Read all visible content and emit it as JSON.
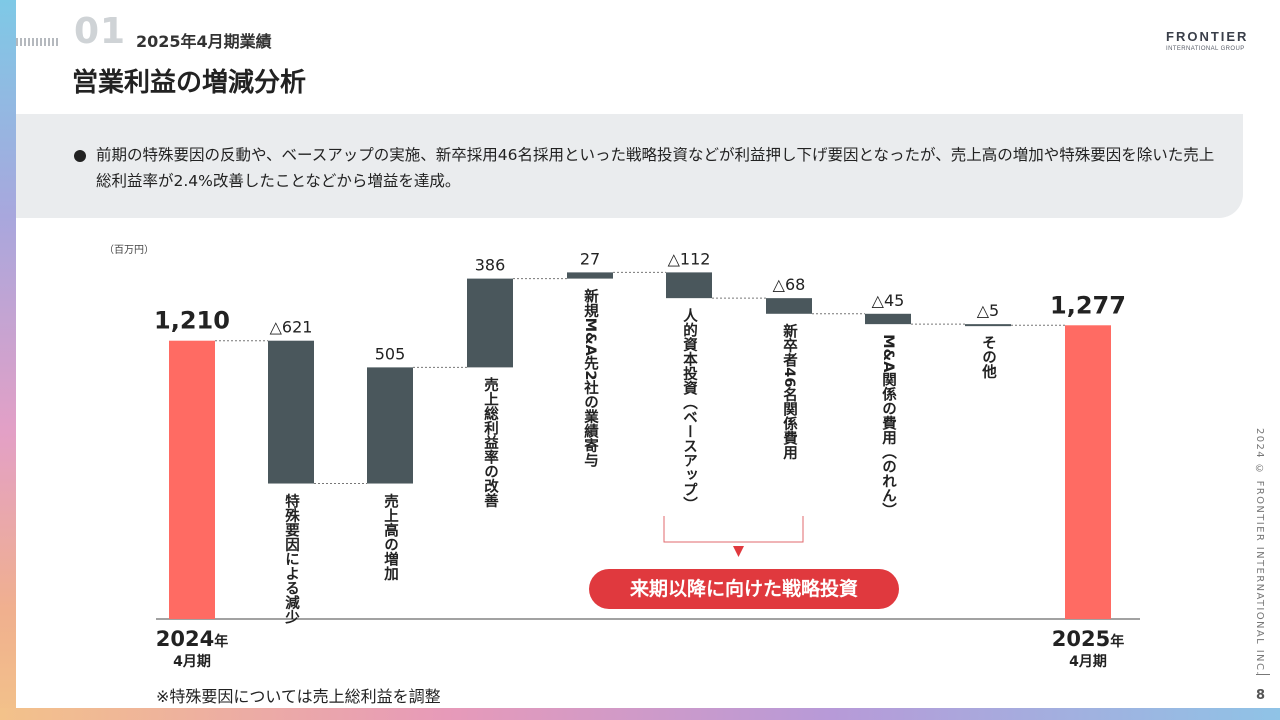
{
  "header": {
    "section_number": "01",
    "section_subtitle": "2025年4月期業績",
    "title": "営業利益の増減分析",
    "logo_main": "FRONTIER",
    "logo_sub": "INTERNATIONAL GROUP"
  },
  "summary": {
    "text": "前期の特殊要因の反動や、ベースアップの実施、新卒採用46名採用といった戦略投資などが利益押し下げ要因となったが、売上高の増加や特殊要因を除いた売上総利益率が2.4%改善したことなどから増益を達成。"
  },
  "chart_data": {
    "type": "waterfall",
    "unit_label": "（百万円）",
    "ylim": [
      0,
      1700
    ],
    "bars": [
      {
        "label": "",
        "value": 1210,
        "value_label": "1,210",
        "kind": "total",
        "start": 0,
        "end": 1210,
        "color": "#ff6b63"
      },
      {
        "label": "特殊要因による減少",
        "value": -621,
        "value_label": "△621",
        "kind": "delta",
        "start": 1210,
        "end": 589
      },
      {
        "label": "売上高の増加",
        "value": 505,
        "value_label": "505",
        "kind": "delta",
        "start": 589,
        "end": 1094
      },
      {
        "label": "売上総利益率の改善",
        "value": 386,
        "value_label": "386",
        "kind": "delta",
        "start": 1094,
        "end": 1480
      },
      {
        "label": "新規M&A先2社の業績寄与",
        "value": 27,
        "value_label": "27",
        "kind": "delta",
        "start": 1480,
        "end": 1507
      },
      {
        "label": "人的資本投資（ベースアップ）",
        "value": -112,
        "value_label": "△112",
        "kind": "delta",
        "start": 1507,
        "end": 1395
      },
      {
        "label": "新卒者46名関係費用",
        "value": -68,
        "value_label": "△68",
        "kind": "delta",
        "start": 1395,
        "end": 1327
      },
      {
        "label": "M&A関係の費用（のれん）",
        "value": -45,
        "value_label": "△45",
        "kind": "delta",
        "start": 1327,
        "end": 1282
      },
      {
        "label": "その他",
        "value": -5,
        "value_label": "△5",
        "kind": "delta",
        "start": 1282,
        "end": 1277
      },
      {
        "label": "",
        "value": 1277,
        "value_label": "1,277",
        "kind": "total",
        "start": 0,
        "end": 1277,
        "color": "#ff6b63"
      }
    ],
    "delta_color": "#4a575c",
    "x_labels": [
      {
        "main": "2024",
        "suffix": "年",
        "sub": "4月期"
      },
      {
        "main": "2025",
        "suffix": "年",
        "sub": "4月期"
      }
    ],
    "group_annotation": "来期以降に向けた戦略投資"
  },
  "footnote": "※特殊要因については売上総利益を調整",
  "copyright": "2024 © FRONTIER INTERNATIONAL INC.",
  "page_number": "8"
}
